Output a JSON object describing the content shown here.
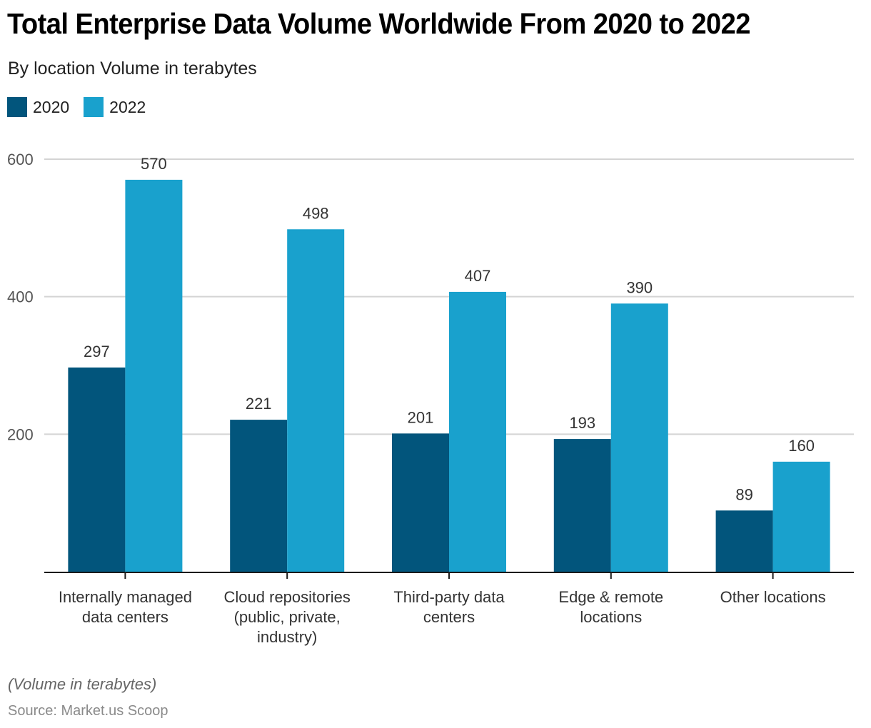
{
  "header": {
    "title": "Total Enterprise Data Volume Worldwide From 2020 to 2022",
    "subtitle": "By location Volume in terabytes"
  },
  "footer": {
    "note": "(Volume in terabytes)",
    "source": "Source: Market.us Scoop"
  },
  "chart_data": {
    "type": "bar",
    "title": "Total Enterprise Data Volume Worldwide From 2020 to 2022",
    "subtitle": "By location Volume in terabytes",
    "xlabel": "",
    "ylabel": "Volume in terabytes",
    "ylim": [
      0,
      600
    ],
    "yticks": [
      200,
      400,
      600
    ],
    "grid": true,
    "legend_position": "top-left",
    "categories": [
      [
        "Internally managed",
        "data centers"
      ],
      [
        "Cloud repositories",
        "(public, private,",
        "industry)"
      ],
      [
        "Third-party data",
        "centers"
      ],
      [
        "Edge & remote",
        "locations"
      ],
      [
        "Other locations"
      ]
    ],
    "series": [
      {
        "name": "2020",
        "color": "#02557c",
        "values": [
          297,
          221,
          201,
          193,
          89
        ]
      },
      {
        "name": "2022",
        "color": "#19a1cd",
        "values": [
          570,
          498,
          407,
          390,
          160
        ]
      }
    ]
  }
}
